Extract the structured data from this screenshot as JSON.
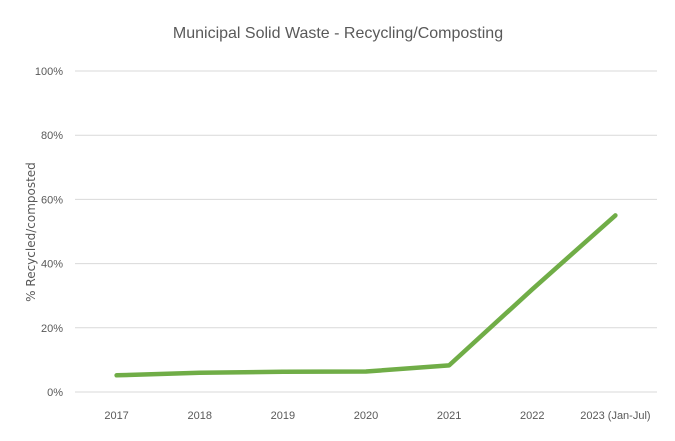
{
  "chart_data": {
    "type": "line",
    "title": "Municipal Solid Waste - Recycling/Composting",
    "xlabel": "",
    "ylabel": "% Recycled/composted",
    "categories": [
      "2017",
      "2018",
      "2019",
      "2020",
      "2021",
      "2022",
      "2023 (Jan-Jul)"
    ],
    "series": [
      {
        "values": [
          5.2,
          6.0,
          6.3,
          6.4,
          8.3,
          32.0,
          55.0
        ],
        "color": "#70ad47"
      }
    ],
    "ylim": [
      0,
      100
    ],
    "yticks": [
      {
        "value": 0,
        "label": "0%"
      },
      {
        "value": 20,
        "label": "20%"
      },
      {
        "value": 40,
        "label": "40%"
      },
      {
        "value": 60,
        "label": "60%"
      },
      {
        "value": 80,
        "label": "80%"
      },
      {
        "value": 100,
        "label": "100%"
      }
    ],
    "grid": true,
    "gridColor": "#d9d9d9",
    "legend": "none"
  }
}
